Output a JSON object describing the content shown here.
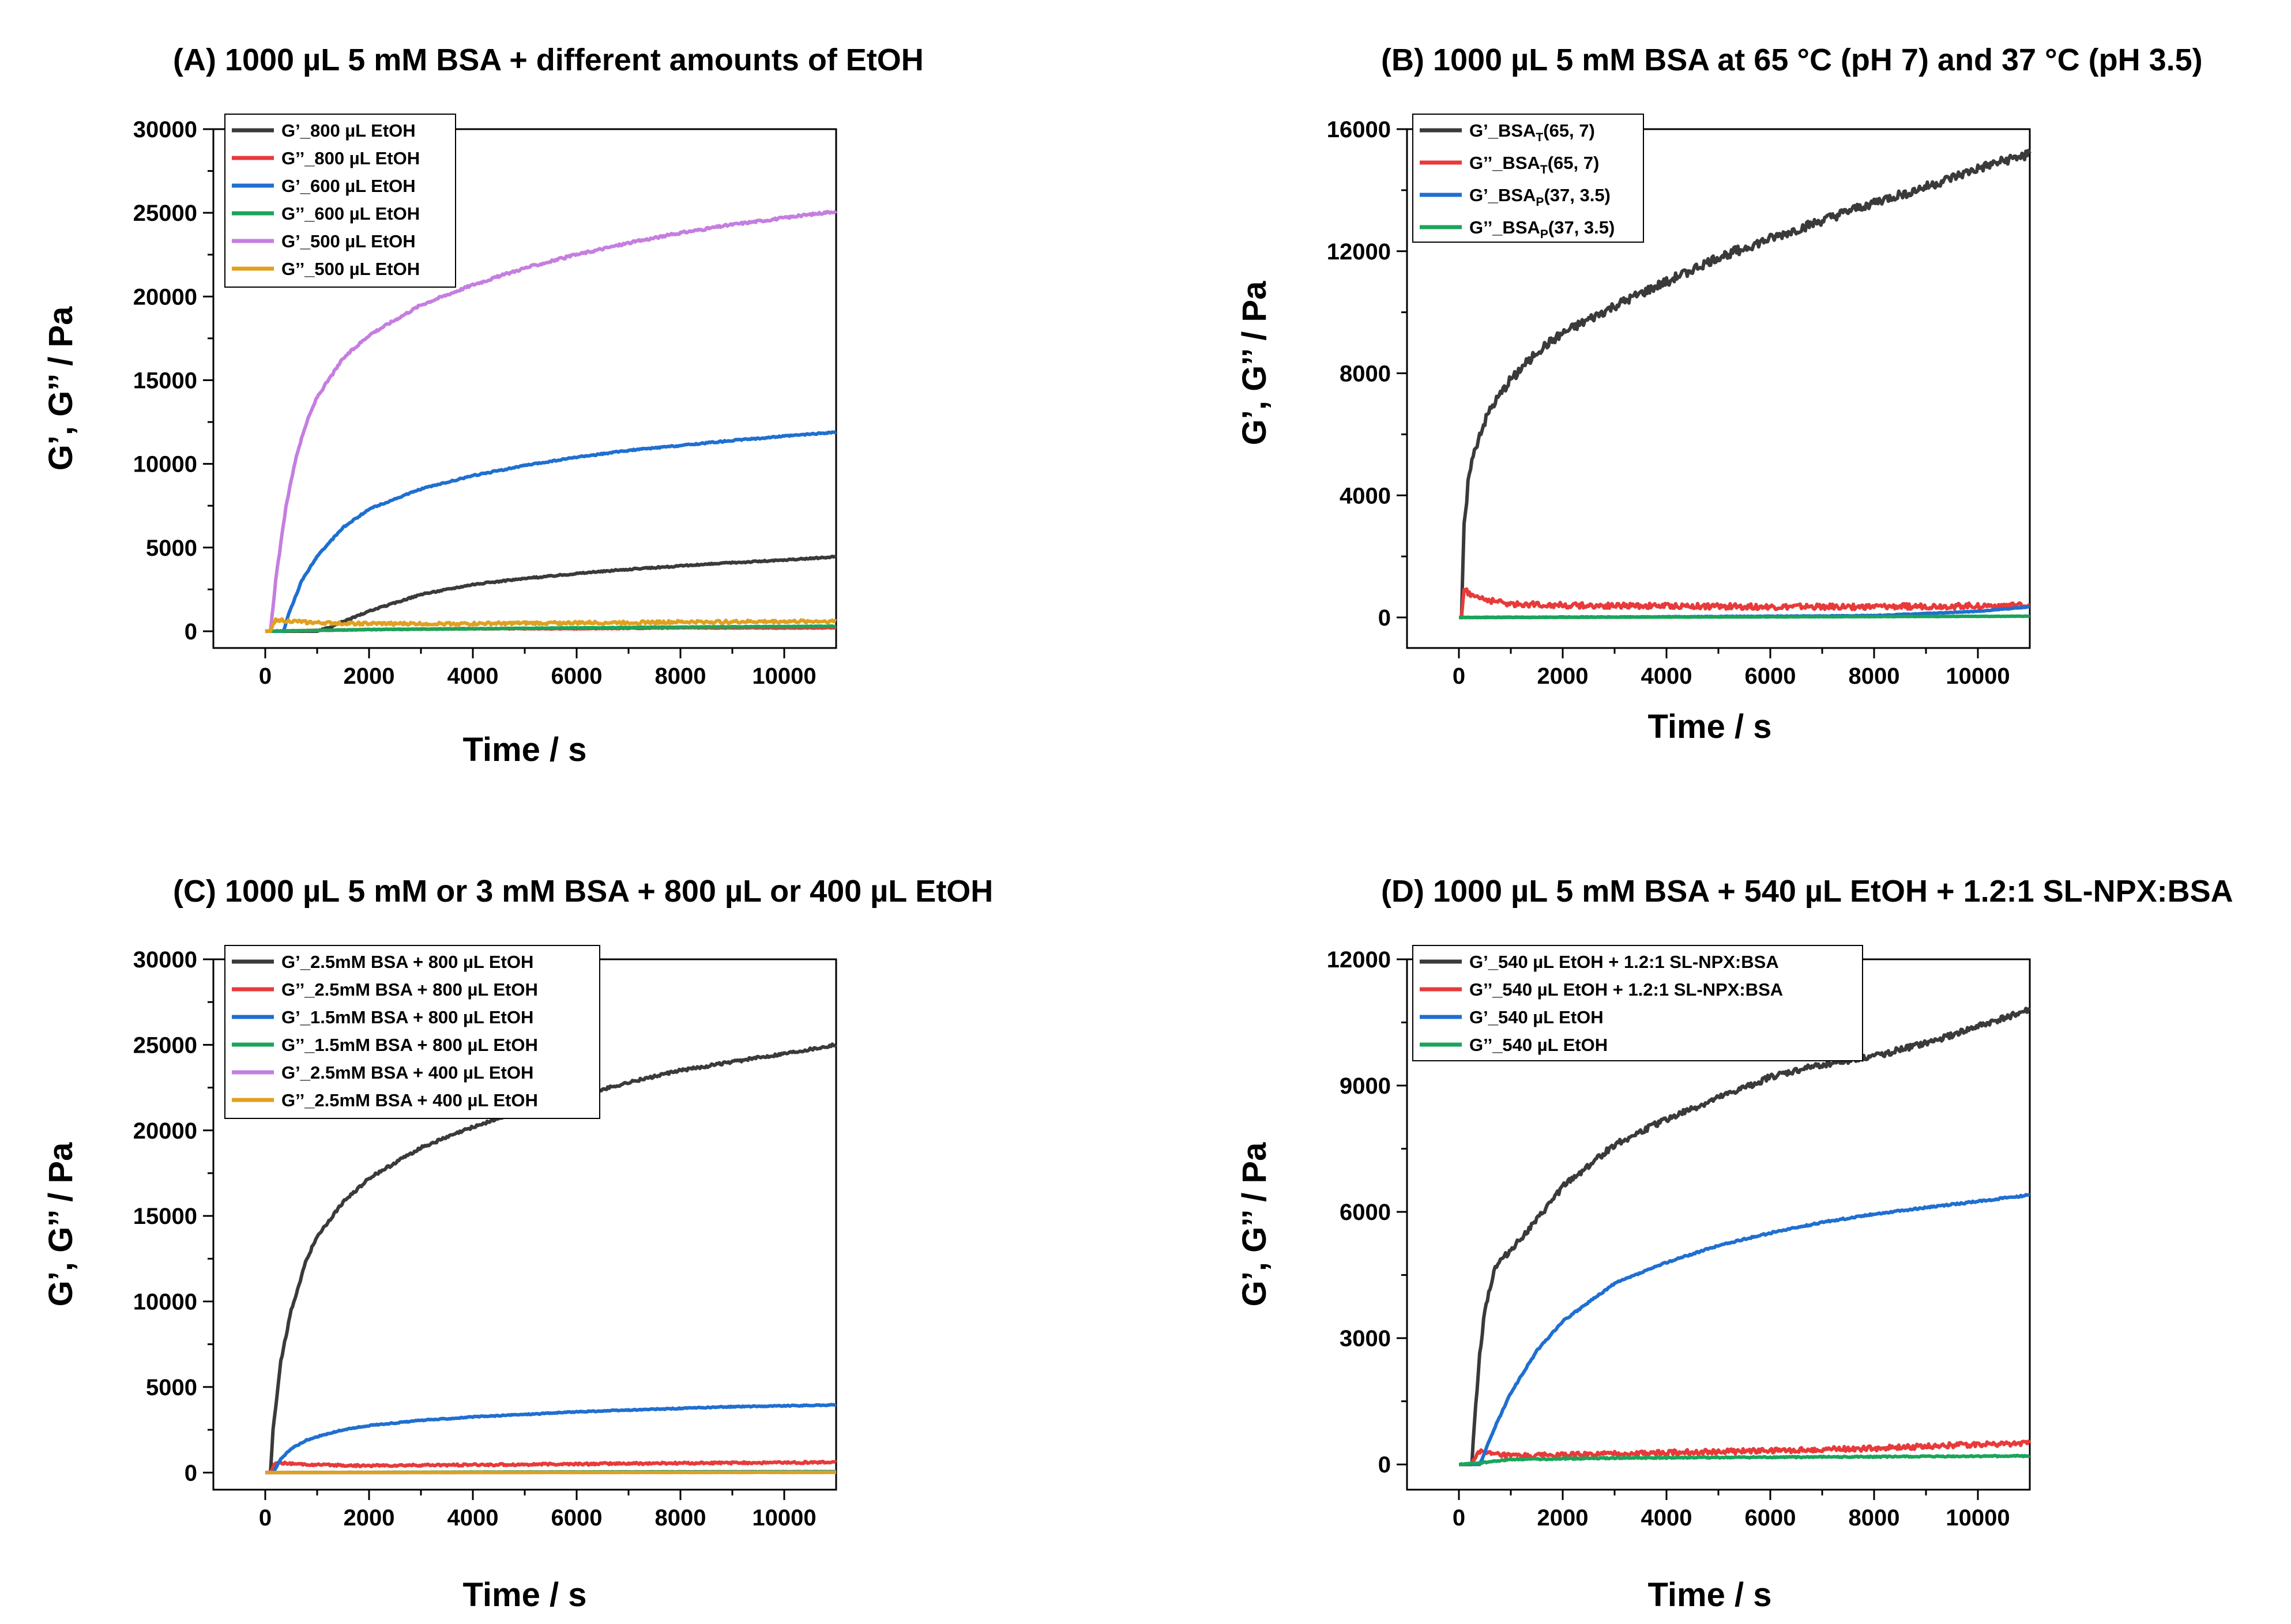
{
  "chart_data": [
    {
      "id": "A",
      "type": "line",
      "title": "(A)  1000 µL 5 mM BSA + different amounts of EtOH",
      "xlabel": "Time / s",
      "ylabel": "G’, G’’ / Pa",
      "xlim": [
        -1000,
        11000
      ],
      "ylim": [
        -1000,
        30000
      ],
      "xticks": [
        0,
        2000,
        4000,
        6000,
        8000,
        10000
      ],
      "yticks": [
        0,
        5000,
        10000,
        15000,
        20000,
        25000,
        30000
      ],
      "xtick_labels": [
        "0",
        "2000",
        "4000",
        "6000",
        "8000",
        "10000"
      ],
      "ytick_labels": [
        "0",
        "5000",
        "10000",
        "15000",
        "20000",
        "25000",
        "30000"
      ],
      "legend_position": "top-left",
      "series": [
        {
          "name": "G’_800 µL EtOH",
          "color": "#3a3a3a",
          "noise": 40,
          "x": [
            0,
            1000,
            1200,
            2000,
            3000,
            4000,
            5000,
            6000,
            7000,
            8000,
            9000,
            10000,
            11000
          ],
          "y": [
            0,
            0,
            200,
            1200,
            2200,
            2800,
            3150,
            3450,
            3700,
            3900,
            4100,
            4250,
            4450
          ]
        },
        {
          "name": "G’’_800 µL EtOH",
          "color": "#e83a3a",
          "noise": 20,
          "x": [
            0,
            1000,
            2000,
            4000,
            6000,
            8000,
            11000
          ],
          "y": [
            0,
            50,
            100,
            150,
            150,
            200,
            200
          ]
        },
        {
          "name": "G’_600 µL EtOH",
          "color": "#1f6fd0",
          "noise": 40,
          "x": [
            0,
            350,
            450,
            700,
            1000,
            1500,
            2000,
            3000,
            4000,
            5000,
            6000,
            7000,
            8000,
            9000,
            10000,
            11000
          ],
          "y": [
            0,
            0,
            1000,
            3000,
            4500,
            6200,
            7300,
            8500,
            9300,
            9900,
            10400,
            10800,
            11100,
            11400,
            11650,
            11900
          ]
        },
        {
          "name": "G’’_600 µL EtOH",
          "color": "#1aa55a",
          "noise": 15,
          "x": [
            0,
            2000,
            4000,
            6000,
            8000,
            11000
          ],
          "y": [
            0,
            100,
            150,
            200,
            250,
            300
          ]
        },
        {
          "name": "G’_500 µL EtOH",
          "color": "#c57ee0",
          "noise": 70,
          "x": [
            0,
            100,
            200,
            400,
            600,
            800,
            1000,
            1500,
            2000,
            3000,
            4000,
            5000,
            6000,
            7000,
            8000,
            9000,
            10000,
            11000
          ],
          "y": [
            0,
            0,
            3000,
            7500,
            10500,
            12500,
            14000,
            16300,
            17700,
            19500,
            20700,
            21700,
            22500,
            23200,
            23800,
            24300,
            24700,
            25100
          ]
        },
        {
          "name": "G’’_500 µL EtOH",
          "color": "#e0a020",
          "noise": 90,
          "x": [
            0,
            100,
            200,
            500,
            1000,
            2000,
            4000,
            6000,
            8000,
            11000
          ],
          "y": [
            0,
            0,
            700,
            600,
            500,
            450,
            450,
            500,
            550,
            600
          ]
        }
      ]
    },
    {
      "id": "B",
      "type": "line",
      "title": "(B)  1000 µL 5 mM BSA at 65 °C (pH 7) and 37 °C (pH 3.5)",
      "xlabel": "Time / s",
      "ylabel": "G’, G’’ / Pa",
      "xlim": [
        -1000,
        11000
      ],
      "ylim": [
        -1000,
        16000
      ],
      "xticks": [
        0,
        2000,
        4000,
        6000,
        8000,
        10000
      ],
      "yticks": [
        0,
        4000,
        8000,
        12000,
        16000
      ],
      "xtick_labels": [
        "0",
        "2000",
        "4000",
        "6000",
        "8000",
        "10000"
      ],
      "ytick_labels": [
        "0",
        "4000",
        "8000",
        "12000",
        "16000"
      ],
      "legend_position": "top-left",
      "series": [
        {
          "name": "G’_BSA",
          "sub": "T",
          "suffix": "(65, 7)",
          "color": "#3a3a3a",
          "noise": 150,
          "x": [
            0,
            50,
            100,
            200,
            400,
            600,
            1000,
            1500,
            2000,
            3000,
            4000,
            5000,
            6000,
            7000,
            8000,
            9000,
            10000,
            11000
          ],
          "y": [
            0,
            0,
            3000,
            4800,
            6000,
            6800,
            7800,
            8700,
            9300,
            10200,
            11000,
            11800,
            12400,
            13000,
            13600,
            14100,
            14700,
            15200
          ]
        },
        {
          "name": "G’’_BSA",
          "sub": "T",
          "suffix": "(65, 7)",
          "color": "#e83a3a",
          "noise": 90,
          "x": [
            0,
            50,
            100,
            300,
            600,
            1000,
            2000,
            4000,
            6000,
            8000,
            11000
          ],
          "y": [
            0,
            0,
            900,
            700,
            550,
            450,
            400,
            380,
            350,
            350,
            400
          ]
        },
        {
          "name": "G’_BSA",
          "sub": "P",
          "suffix": "(37, 3.5)",
          "color": "#1f6fd0",
          "noise": 10,
          "x": [
            0,
            4000,
            8000,
            10000,
            11000
          ],
          "y": [
            0,
            20,
            60,
            200,
            350
          ]
        },
        {
          "name": "G’’_BSA",
          "sub": "P",
          "suffix": "(37, 3.5)",
          "color": "#1aa55a",
          "noise": 5,
          "x": [
            0,
            6000,
            11000
          ],
          "y": [
            0,
            20,
            40
          ]
        }
      ]
    },
    {
      "id": "C",
      "type": "line",
      "title": "(C)  1000 µL 5 mM or 3 mM BSA + 800 µL or 400 µL EtOH",
      "xlabel": "Time / s",
      "ylabel": "G’, G’’ / Pa",
      "xlim": [
        -1000,
        11000
      ],
      "ylim": [
        -1000,
        30000
      ],
      "xticks": [
        0,
        2000,
        4000,
        6000,
        8000,
        10000
      ],
      "yticks": [
        0,
        5000,
        10000,
        15000,
        20000,
        25000,
        30000
      ],
      "xtick_labels": [
        "0",
        "2000",
        "4000",
        "6000",
        "8000",
        "10000"
      ],
      "ytick_labels": [
        "0",
        "5000",
        "10000",
        "15000",
        "20000",
        "25000",
        "30000"
      ],
      "legend_position": "top-left",
      "series": [
        {
          "name": "G’_2.5mM BSA + 800 µL EtOH",
          "color": "#3a3a3a",
          "noise": 80,
          "x": [
            0,
            100,
            150,
            300,
            500,
            800,
            1000,
            1500,
            2000,
            3000,
            4000,
            5000,
            6000,
            7000,
            8000,
            9000,
            10000,
            11000
          ],
          "y": [
            0,
            0,
            2500,
            6500,
            9500,
            12500,
            13800,
            15800,
            17200,
            19000,
            20200,
            21200,
            22000,
            22800,
            23500,
            24000,
            24500,
            25000
          ]
        },
        {
          "name": "G’’_2.5mM BSA + 800 µL EtOH",
          "color": "#e83a3a",
          "noise": 60,
          "x": [
            0,
            100,
            200,
            500,
            1000,
            2000,
            4000,
            6000,
            8000,
            11000
          ],
          "y": [
            0,
            0,
            600,
            500,
            450,
            400,
            450,
            500,
            550,
            600
          ]
        },
        {
          "name": "G’_1.5mM BSA + 800 µL EtOH",
          "color": "#1f6fd0",
          "noise": 30,
          "x": [
            0,
            150,
            300,
            500,
            800,
            1000,
            1500,
            2000,
            3000,
            4000,
            5000,
            6000,
            7000,
            8000,
            9000,
            10000,
            11000
          ],
          "y": [
            0,
            0,
            800,
            1400,
            1900,
            2100,
            2500,
            2750,
            3050,
            3250,
            3400,
            3550,
            3650,
            3750,
            3850,
            3900,
            3950
          ]
        },
        {
          "name": "G’’_1.5mM BSA + 800 µL EtOH",
          "color": "#1aa55a",
          "noise": 5,
          "x": [
            0,
            4000,
            11000
          ],
          "y": [
            0,
            30,
            60
          ]
        },
        {
          "name": "G’_2.5mM BSA + 400 µL EtOH",
          "color": "#c57ee0",
          "noise": 5,
          "x": [
            0,
            11000
          ],
          "y": [
            0,
            20
          ]
        },
        {
          "name": "G’’_2.5mM BSA + 400 µL EtOH",
          "color": "#e0a020",
          "noise": 5,
          "x": [
            0,
            11000
          ],
          "y": [
            0,
            10
          ]
        }
      ]
    },
    {
      "id": "D",
      "type": "line",
      "title": "(D)  1000 µL 5 mM BSA + 540 µL EtOH + 1.2:1 SL-NPX:BSA",
      "xlabel": "Time / s",
      "ylabel": "G’, G’’ / Pa",
      "xlim": [
        -1000,
        11000
      ],
      "ylim": [
        -600,
        12000
      ],
      "xticks": [
        0,
        2000,
        4000,
        6000,
        8000,
        10000
      ],
      "yticks": [
        0,
        3000,
        6000,
        9000,
        12000
      ],
      "xtick_labels": [
        "0",
        "2000",
        "4000",
        "6000",
        "8000",
        "10000"
      ],
      "ytick_labels": [
        "0",
        "3000",
        "6000",
        "9000",
        "12000"
      ],
      "legend_position": "top-left",
      "series": [
        {
          "name": "G’_540 µL EtOH + 1.2:1 SL-NPX:BSA",
          "color": "#3a3a3a",
          "noise": 70,
          "x": [
            0,
            250,
            300,
            400,
            500,
            700,
            1000,
            1500,
            2000,
            3000,
            4000,
            5000,
            6000,
            7000,
            8000,
            9000,
            10000,
            11000
          ],
          "y": [
            0,
            0,
            1000,
            2600,
            3700,
            4700,
            5100,
            5800,
            6600,
            7600,
            8200,
            8700,
            9200,
            9500,
            9700,
            10000,
            10400,
            10800
          ]
        },
        {
          "name": "G’’_540 µL EtOH + 1.2:1 SL-NPX:BSA",
          "color": "#e83a3a",
          "noise": 60,
          "x": [
            0,
            250,
            350,
            600,
            1000,
            2000,
            4000,
            6000,
            8000,
            10000,
            11000
          ],
          "y": [
            0,
            0,
            300,
            250,
            200,
            220,
            280,
            330,
            380,
            480,
            500
          ]
        },
        {
          "name": "G’_540 µL EtOH",
          "color": "#1f6fd0",
          "noise": 20,
          "x": [
            0,
            400,
            500,
            700,
            1000,
            1500,
            2000,
            3000,
            4000,
            5000,
            6000,
            7000,
            8000,
            9000,
            10000,
            11000
          ],
          "y": [
            0,
            0,
            300,
            900,
            1700,
            2700,
            3400,
            4300,
            4800,
            5200,
            5500,
            5750,
            5950,
            6100,
            6250,
            6400
          ]
        },
        {
          "name": "G’’_540 µL EtOH",
          "color": "#1aa55a",
          "noise": 15,
          "x": [
            0,
            500,
            1000,
            3000,
            6000,
            11000
          ],
          "y": [
            0,
            50,
            120,
            150,
            170,
            200
          ]
        }
      ]
    }
  ]
}
